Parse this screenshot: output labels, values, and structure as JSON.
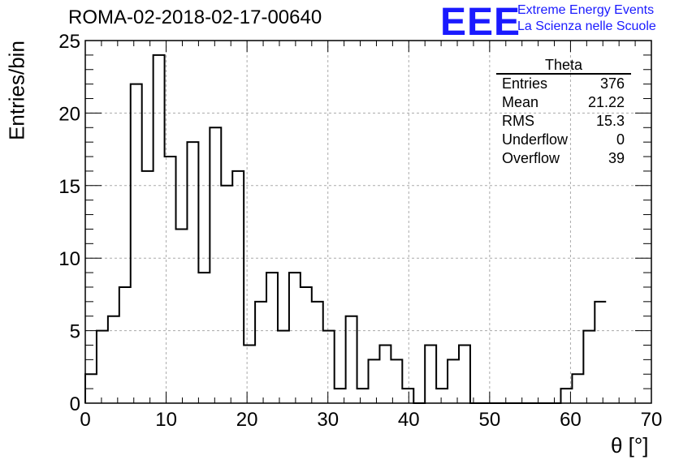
{
  "header": {
    "run_title": "ROMA-02-2018-02-17-00640",
    "logo": "EEE",
    "logo_line1": "Extreme Energy Events",
    "logo_line2": "La Scienza nelle Scuole"
  },
  "stats_box": {
    "title": "Theta",
    "rows": [
      {
        "label": "Entries",
        "value": "376"
      },
      {
        "label": "Mean",
        "value": "21.22"
      },
      {
        "label": "RMS",
        "value": "15.3"
      },
      {
        "label": "Underflow",
        "value": "0"
      },
      {
        "label": "Overflow",
        "value": "39"
      }
    ]
  },
  "chart_data": {
    "type": "bar",
    "histogram": true,
    "title": "ROMA-02-2018-02-17-00640",
    "xlabel": "θ [°]",
    "ylabel": "Entries/bin",
    "xlim": [
      0,
      70
    ],
    "ylim": [
      0,
      25
    ],
    "x_ticks": [
      0,
      10,
      20,
      30,
      40,
      50,
      60,
      70
    ],
    "y_ticks": [
      0,
      5,
      10,
      15,
      20,
      25
    ],
    "grid": true,
    "bin_width": 1,
    "bin_edges_start": 0,
    "values": [
      2,
      5,
      6,
      8,
      22,
      16,
      24,
      17,
      12,
      18,
      9,
      19,
      15,
      16,
      4,
      7,
      9,
      5,
      9,
      8,
      7,
      5,
      1,
      6,
      1,
      3,
      4,
      3,
      1,
      0,
      4,
      1,
      3,
      4,
      0,
      0,
      0,
      0,
      0,
      0,
      0,
      0,
      1,
      2,
      5,
      7
    ],
    "bin_starts": [
      0,
      1,
      2,
      3,
      4,
      6,
      7,
      8,
      9,
      10,
      11,
      12,
      13,
      15,
      16,
      17,
      18,
      20,
      21,
      22,
      23,
      24,
      25,
      26,
      27,
      28,
      29,
      30,
      31,
      32,
      33,
      34,
      35,
      36,
      37,
      38,
      39,
      40,
      41,
      42,
      43,
      44,
      45,
      46,
      47,
      48
    ],
    "notes_free": ""
  }
}
